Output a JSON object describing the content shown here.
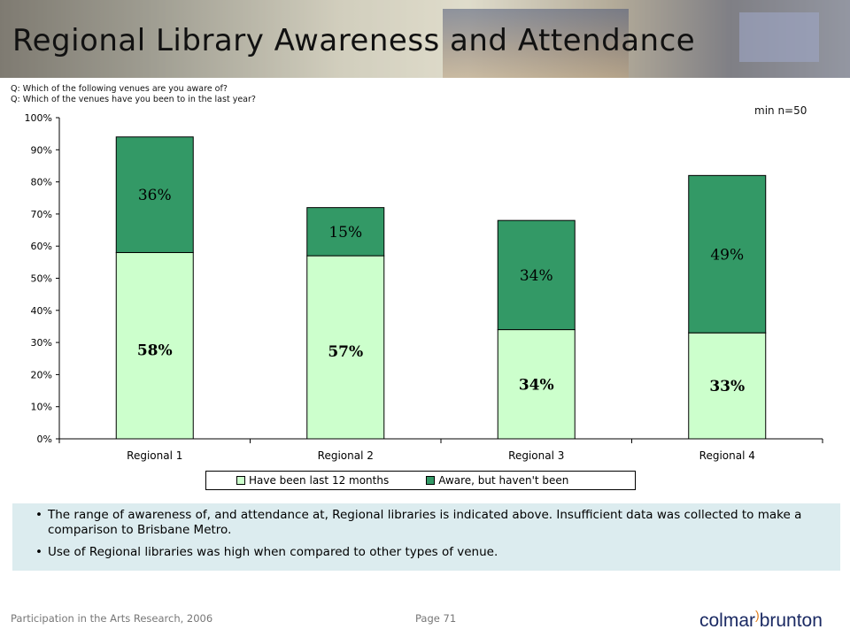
{
  "slide": {
    "title": "Regional Library Awareness and Attendance",
    "question_1": "Q: Which of the following venues are you aware of?",
    "question_2": "Q: Which of the venues have you been to in the last year?",
    "sample_note": "min n=50"
  },
  "chart_data": {
    "type": "bar",
    "stacked": true,
    "categories": [
      "Regional 1",
      "Regional 2",
      "Regional 3",
      "Regional 4"
    ],
    "series": [
      {
        "name": "Have been last 12 months",
        "values": [
          58,
          57,
          34,
          33
        ],
        "color": "#ccffcc",
        "labels": [
          "58%",
          "57%",
          "34%",
          "33%"
        ]
      },
      {
        "name": "Aware, but haven't been",
        "values": [
          36,
          15,
          34,
          49
        ],
        "color": "#339966",
        "labels": [
          "36%",
          "15%",
          "34%",
          "49%"
        ]
      }
    ],
    "ylim": [
      0,
      100
    ],
    "yticks": [
      "0%",
      "10%",
      "20%",
      "30%",
      "40%",
      "50%",
      "60%",
      "70%",
      "80%",
      "90%",
      "100%"
    ],
    "legend_position": "bottom",
    "grid": false
  },
  "commentary": {
    "bullet_1": "The range of awareness of, and attendance at, Regional libraries is indicated above.  Insufficient data was collected to make a comparison to Brisbane Metro.",
    "bullet_2": "Use of Regional libraries was high when compared to other types of venue."
  },
  "footer": {
    "source": "Participation in the Arts Research, 2006",
    "page": "Page 71",
    "logo_text": "colmar brunton"
  }
}
